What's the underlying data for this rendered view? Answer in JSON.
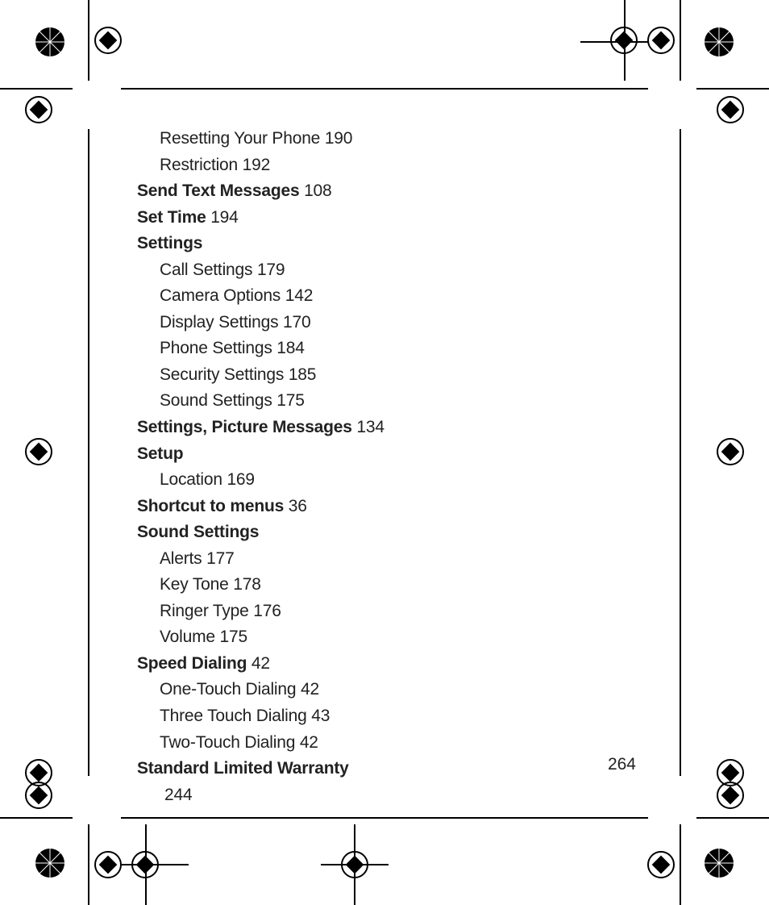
{
  "page_number": "264",
  "index": [
    {
      "label": "Resetting Your Phone",
      "page": "190",
      "bold": false,
      "indent": "sub"
    },
    {
      "label": "Restriction",
      "page": "192",
      "bold": false,
      "indent": "sub"
    },
    {
      "label": "Send Text Messages",
      "page": "108",
      "bold": true,
      "indent": ""
    },
    {
      "label": "Set Time",
      "page": "194",
      "bold": true,
      "indent": ""
    },
    {
      "label": "Settings",
      "page": "",
      "bold": true,
      "indent": ""
    },
    {
      "label": "Call Settings",
      "page": "179",
      "bold": false,
      "indent": "sub"
    },
    {
      "label": "Camera Options",
      "page": "142",
      "bold": false,
      "indent": "sub"
    },
    {
      "label": "Display Settings",
      "page": "170",
      "bold": false,
      "indent": "sub"
    },
    {
      "label": "Phone Settings",
      "page": "184",
      "bold": false,
      "indent": "sub"
    },
    {
      "label": "Security Settings",
      "page": "185",
      "bold": false,
      "indent": "sub"
    },
    {
      "label": "Sound Settings",
      "page": "175",
      "bold": false,
      "indent": "sub"
    },
    {
      "label": "Settings, Picture Messages",
      "page": "134",
      "bold": true,
      "indent": ""
    },
    {
      "label": "Setup",
      "page": "",
      "bold": true,
      "indent": ""
    },
    {
      "label": "Location",
      "page": "169",
      "bold": false,
      "indent": "sub"
    },
    {
      "label": "Shortcut to menus",
      "page": "36",
      "bold": true,
      "indent": ""
    },
    {
      "label": "Sound Settings",
      "page": "",
      "bold": true,
      "indent": ""
    },
    {
      "label": "Alerts",
      "page": "177",
      "bold": false,
      "indent": "sub"
    },
    {
      "label": "Key Tone",
      "page": "178",
      "bold": false,
      "indent": "sub"
    },
    {
      "label": "Ringer Type",
      "page": "176",
      "bold": false,
      "indent": "sub"
    },
    {
      "label": "Volume",
      "page": "175",
      "bold": false,
      "indent": "sub"
    },
    {
      "label": "Speed Dialing",
      "page": "42",
      "bold": true,
      "indent": ""
    },
    {
      "label": "One-Touch Dialing",
      "page": "42",
      "bold": false,
      "indent": "sub"
    },
    {
      "label": "Three Touch Dialing",
      "page": "43",
      "bold": false,
      "indent": "sub"
    },
    {
      "label": "Two-Touch Dialing",
      "page": "42",
      "bold": false,
      "indent": "sub"
    },
    {
      "label": "Standard Limited Warranty",
      "page": "",
      "bold": true,
      "indent": ""
    },
    {
      "label": "",
      "page": "244",
      "bold": false,
      "indent": "sub2"
    }
  ],
  "colors": {
    "text": "#222222",
    "bg": "#ffffff",
    "mark": "#000000"
  }
}
